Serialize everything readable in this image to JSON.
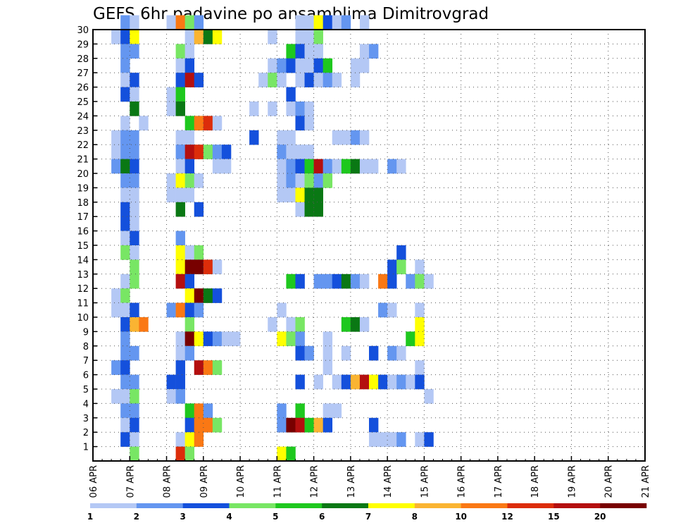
{
  "chart_data": {
    "type": "heatmap",
    "title": "GEFS 6hr padavine po ansamblima Dimitrovgrad",
    "xlabel": "",
    "ylabel": "",
    "x_ticks": [
      "06 APR",
      "07 APR",
      "08 APR",
      "09 APR",
      "10 APR",
      "11 APR",
      "12 APR",
      "13 APR",
      "14 APR",
      "15 APR",
      "16 APR",
      "17 APR",
      "18 APR",
      "19 APR",
      "20 APR",
      "21 APR"
    ],
    "y_ticks": [
      "1",
      "2",
      "3",
      "4",
      "5",
      "6",
      "7",
      "8",
      "9",
      "10",
      "11",
      "12",
      "13",
      "14",
      "15",
      "16",
      "17",
      "18",
      "19",
      "20",
      "21",
      "22",
      "23",
      "24",
      "25",
      "26",
      "27",
      "28",
      "29",
      "30"
    ],
    "xlim": [
      0,
      60
    ],
    "ylim": [
      0,
      30
    ],
    "steps_per_day": 4,
    "legend": {
      "labels": [
        "1",
        "2",
        "3",
        "4",
        "5",
        "6",
        "7",
        "8",
        "10",
        "12",
        "15",
        "20"
      ],
      "colors": [
        "#b4c8f5",
        "#6496f0",
        "#1450dc",
        "#78e664",
        "#1ec81e",
        "#0a7814",
        "#ffff00",
        "#fab432",
        "#fa7814",
        "#dc2d0a",
        "#b40f0f",
        "#780000"
      ]
    },
    "cells": [
      [
        30,
        3,
        2
      ],
      [
        30,
        4,
        1
      ],
      [
        30,
        8,
        1
      ],
      [
        30,
        9,
        10
      ],
      [
        30,
        10,
        4
      ],
      [
        30,
        11,
        2
      ],
      [
        30,
        22,
        1
      ],
      [
        30,
        23,
        1
      ],
      [
        30,
        24,
        7
      ],
      [
        30,
        25,
        3
      ],
      [
        30,
        26,
        1
      ],
      [
        30,
        27,
        2
      ],
      [
        30,
        29,
        1
      ],
      [
        29,
        2,
        1
      ],
      [
        29,
        3,
        3
      ],
      [
        29,
        4,
        7
      ],
      [
        29,
        10,
        1
      ],
      [
        29,
        11,
        8
      ],
      [
        29,
        12,
        6
      ],
      [
        29,
        13,
        7
      ],
      [
        29,
        19,
        1
      ],
      [
        29,
        22,
        1
      ],
      [
        29,
        23,
        1
      ],
      [
        29,
        24,
        4
      ],
      [
        28,
        3,
        2
      ],
      [
        28,
        4,
        2
      ],
      [
        28,
        9,
        4
      ],
      [
        28,
        10,
        1
      ],
      [
        28,
        21,
        5
      ],
      [
        28,
        22,
        3
      ],
      [
        28,
        23,
        1
      ],
      [
        28,
        24,
        1
      ],
      [
        28,
        29,
        1
      ],
      [
        28,
        30,
        2
      ],
      [
        27,
        3,
        2
      ],
      [
        27,
        9,
        1
      ],
      [
        27,
        10,
        3
      ],
      [
        27,
        19,
        1
      ],
      [
        27,
        20,
        2
      ],
      [
        27,
        21,
        3
      ],
      [
        27,
        22,
        1
      ],
      [
        27,
        23,
        1
      ],
      [
        27,
        24,
        3
      ],
      [
        27,
        25,
        5
      ],
      [
        27,
        28,
        1
      ],
      [
        27,
        29,
        1
      ],
      [
        26,
        3,
        1
      ],
      [
        26,
        4,
        3
      ],
      [
        26,
        9,
        3
      ],
      [
        26,
        10,
        15
      ],
      [
        26,
        11,
        3
      ],
      [
        26,
        18,
        1
      ],
      [
        26,
        19,
        4
      ],
      [
        26,
        20,
        1
      ],
      [
        26,
        22,
        1
      ],
      [
        26,
        23,
        3
      ],
      [
        26,
        24,
        1
      ],
      [
        26,
        25,
        2
      ],
      [
        26,
        26,
        1
      ],
      [
        26,
        28,
        1
      ],
      [
        25,
        3,
        3
      ],
      [
        25,
        4,
        1
      ],
      [
        25,
        8,
        1
      ],
      [
        25,
        9,
        5
      ],
      [
        25,
        21,
        3
      ],
      [
        24,
        4,
        6
      ],
      [
        24,
        8,
        1
      ],
      [
        24,
        9,
        6
      ],
      [
        24,
        17,
        1
      ],
      [
        24,
        19,
        1
      ],
      [
        24,
        21,
        1
      ],
      [
        24,
        22,
        2
      ],
      [
        24,
        23,
        1
      ],
      [
        23,
        3,
        1
      ],
      [
        23,
        5,
        1
      ],
      [
        23,
        10,
        5
      ],
      [
        23,
        11,
        10
      ],
      [
        23,
        12,
        12
      ],
      [
        23,
        13,
        1
      ],
      [
        23,
        22,
        3
      ],
      [
        23,
        23,
        1
      ],
      [
        22,
        2,
        1
      ],
      [
        22,
        3,
        2
      ],
      [
        22,
        4,
        2
      ],
      [
        22,
        9,
        1
      ],
      [
        22,
        10,
        1
      ],
      [
        22,
        17,
        3
      ],
      [
        22,
        20,
        1
      ],
      [
        22,
        21,
        1
      ],
      [
        22,
        26,
        1
      ],
      [
        22,
        27,
        1
      ],
      [
        22,
        28,
        2
      ],
      [
        22,
        29,
        1
      ],
      [
        21,
        2,
        1
      ],
      [
        21,
        3,
        2
      ],
      [
        21,
        4,
        2
      ],
      [
        21,
        9,
        2
      ],
      [
        21,
        10,
        15
      ],
      [
        21,
        11,
        12
      ],
      [
        21,
        12,
        4
      ],
      [
        21,
        13,
        2
      ],
      [
        21,
        14,
        3
      ],
      [
        21,
        20,
        2
      ],
      [
        21,
        21,
        1
      ],
      [
        21,
        22,
        1
      ],
      [
        21,
        23,
        1
      ],
      [
        20,
        2,
        2
      ],
      [
        20,
        3,
        6
      ],
      [
        20,
        4,
        3
      ],
      [
        20,
        9,
        1
      ],
      [
        20,
        10,
        3
      ],
      [
        20,
        13,
        1
      ],
      [
        20,
        14,
        1
      ],
      [
        20,
        20,
        1
      ],
      [
        20,
        21,
        2
      ],
      [
        20,
        22,
        3
      ],
      [
        20,
        23,
        5
      ],
      [
        20,
        24,
        15
      ],
      [
        20,
        25,
        2
      ],
      [
        20,
        26,
        1
      ],
      [
        20,
        27,
        5
      ],
      [
        20,
        28,
        6
      ],
      [
        20,
        29,
        1
      ],
      [
        20,
        30,
        1
      ],
      [
        20,
        32,
        2
      ],
      [
        20,
        33,
        1
      ],
      [
        19,
        3,
        2
      ],
      [
        19,
        4,
        2
      ],
      [
        19,
        8,
        1
      ],
      [
        19,
        9,
        7
      ],
      [
        19,
        10,
        4
      ],
      [
        19,
        11,
        1
      ],
      [
        19,
        20,
        1
      ],
      [
        19,
        21,
        2
      ],
      [
        19,
        22,
        1
      ],
      [
        19,
        23,
        4
      ],
      [
        19,
        24,
        2
      ],
      [
        19,
        25,
        4
      ],
      [
        18,
        3,
        1
      ],
      [
        18,
        4,
        1
      ],
      [
        18,
        8,
        1
      ],
      [
        18,
        9,
        1
      ],
      [
        18,
        10,
        1
      ],
      [
        18,
        20,
        1
      ],
      [
        18,
        21,
        1
      ],
      [
        18,
        22,
        7
      ],
      [
        18,
        23,
        6
      ],
      [
        18,
        24,
        6
      ],
      [
        17,
        3,
        3
      ],
      [
        17,
        4,
        1
      ],
      [
        17,
        9,
        6
      ],
      [
        17,
        11,
        3
      ],
      [
        17,
        22,
        1
      ],
      [
        17,
        23,
        6
      ],
      [
        17,
        24,
        6
      ],
      [
        16,
        3,
        3
      ],
      [
        16,
        4,
        1
      ],
      [
        15,
        3,
        1
      ],
      [
        15,
        4,
        3
      ],
      [
        15,
        9,
        2
      ],
      [
        14,
        3,
        4
      ],
      [
        14,
        4,
        1
      ],
      [
        14,
        9,
        7
      ],
      [
        14,
        10,
        1
      ],
      [
        14,
        11,
        4
      ],
      [
        14,
        33,
        3
      ],
      [
        13,
        4,
        4
      ],
      [
        13,
        9,
        7
      ],
      [
        13,
        10,
        20
      ],
      [
        13,
        11,
        20
      ],
      [
        13,
        12,
        12
      ],
      [
        13,
        13,
        1
      ],
      [
        13,
        32,
        3
      ],
      [
        13,
        33,
        4
      ],
      [
        13,
        35,
        1
      ],
      [
        12,
        3,
        1
      ],
      [
        12,
        4,
        4
      ],
      [
        12,
        9,
        15
      ],
      [
        12,
        10,
        3
      ],
      [
        12,
        21,
        5
      ],
      [
        12,
        22,
        3
      ],
      [
        12,
        24,
        2
      ],
      [
        12,
        25,
        2
      ],
      [
        12,
        26,
        3
      ],
      [
        12,
        27,
        6
      ],
      [
        12,
        28,
        2
      ],
      [
        12,
        29,
        1
      ],
      [
        12,
        31,
        10
      ],
      [
        12,
        32,
        3
      ],
      [
        12,
        34,
        2
      ],
      [
        12,
        35,
        4
      ],
      [
        12,
        36,
        1
      ],
      [
        11,
        2,
        1
      ],
      [
        11,
        3,
        4
      ],
      [
        11,
        10,
        7
      ],
      [
        11,
        11,
        20
      ],
      [
        11,
        12,
        6
      ],
      [
        11,
        13,
        3
      ],
      [
        10,
        2,
        1
      ],
      [
        10,
        3,
        1
      ],
      [
        10,
        4,
        3
      ],
      [
        10,
        8,
        2
      ],
      [
        10,
        9,
        10
      ],
      [
        10,
        10,
        3
      ],
      [
        10,
        11,
        2
      ],
      [
        10,
        20,
        1
      ],
      [
        10,
        31,
        2
      ],
      [
        10,
        32,
        1
      ],
      [
        10,
        35,
        1
      ],
      [
        9,
        3,
        3
      ],
      [
        9,
        4,
        8
      ],
      [
        9,
        5,
        10
      ],
      [
        9,
        10,
        4
      ],
      [
        9,
        19,
        1
      ],
      [
        9,
        21,
        1
      ],
      [
        9,
        22,
        4
      ],
      [
        9,
        27,
        5
      ],
      [
        9,
        28,
        6
      ],
      [
        9,
        29,
        1
      ],
      [
        9,
        35,
        7
      ],
      [
        8,
        3,
        2
      ],
      [
        8,
        9,
        1
      ],
      [
        8,
        10,
        20
      ],
      [
        8,
        11,
        7
      ],
      [
        8,
        12,
        3
      ],
      [
        8,
        13,
        2
      ],
      [
        8,
        14,
        1
      ],
      [
        8,
        15,
        1
      ],
      [
        8,
        20,
        7
      ],
      [
        8,
        21,
        4
      ],
      [
        8,
        22,
        2
      ],
      [
        8,
        25,
        1
      ],
      [
        8,
        34,
        5
      ],
      [
        8,
        35,
        7
      ],
      [
        7,
        3,
        2
      ],
      [
        7,
        4,
        2
      ],
      [
        7,
        9,
        1
      ],
      [
        7,
        10,
        2
      ],
      [
        7,
        22,
        3
      ],
      [
        7,
        23,
        2
      ],
      [
        7,
        25,
        1
      ],
      [
        7,
        27,
        1
      ],
      [
        7,
        30,
        3
      ],
      [
        7,
        32,
        2
      ],
      [
        7,
        33,
        1
      ],
      [
        6,
        2,
        2
      ],
      [
        6,
        3,
        3
      ],
      [
        6,
        9,
        3
      ],
      [
        6,
        11,
        15
      ],
      [
        6,
        12,
        10
      ],
      [
        6,
        13,
        4
      ],
      [
        6,
        25,
        1
      ],
      [
        6,
        35,
        1
      ],
      [
        5,
        3,
        2
      ],
      [
        5,
        4,
        2
      ],
      [
        5,
        8,
        3
      ],
      [
        5,
        9,
        3
      ],
      [
        5,
        22,
        3
      ],
      [
        5,
        24,
        1
      ],
      [
        5,
        26,
        1
      ],
      [
        5,
        27,
        3
      ],
      [
        5,
        28,
        8
      ],
      [
        5,
        29,
        15
      ],
      [
        5,
        30,
        7
      ],
      [
        5,
        31,
        3
      ],
      [
        5,
        32,
        1
      ],
      [
        5,
        33,
        2
      ],
      [
        5,
        34,
        1
      ],
      [
        5,
        35,
        3
      ],
      [
        4,
        2,
        1
      ],
      [
        4,
        3,
        1
      ],
      [
        4,
        4,
        4
      ],
      [
        4,
        8,
        1
      ],
      [
        4,
        9,
        2
      ],
      [
        4,
        36,
        1
      ],
      [
        3,
        3,
        2
      ],
      [
        3,
        4,
        2
      ],
      [
        3,
        10,
        5
      ],
      [
        3,
        11,
        10
      ],
      [
        3,
        12,
        2
      ],
      [
        3,
        20,
        2
      ],
      [
        3,
        22,
        5
      ],
      [
        3,
        25,
        1
      ],
      [
        3,
        26,
        1
      ],
      [
        2,
        3,
        1
      ],
      [
        2,
        4,
        3
      ],
      [
        2,
        10,
        3
      ],
      [
        2,
        11,
        10
      ],
      [
        2,
        12,
        10
      ],
      [
        2,
        13,
        4
      ],
      [
        2,
        20,
        2
      ],
      [
        2,
        21,
        20
      ],
      [
        2,
        22,
        15
      ],
      [
        2,
        23,
        5
      ],
      [
        2,
        24,
        8
      ],
      [
        2,
        25,
        3
      ],
      [
        2,
        30,
        3
      ],
      [
        1,
        3,
        3
      ],
      [
        1,
        4,
        1
      ],
      [
        1,
        9,
        1
      ],
      [
        1,
        10,
        7
      ],
      [
        1,
        11,
        10
      ],
      [
        1,
        30,
        1
      ],
      [
        1,
        31,
        1
      ],
      [
        1,
        32,
        1
      ],
      [
        1,
        33,
        2
      ],
      [
        1,
        35,
        1
      ],
      [
        1,
        36,
        3
      ],
      [
        0,
        4,
        4
      ],
      [
        0,
        9,
        12
      ],
      [
        0,
        10,
        4
      ],
      [
        0,
        20,
        7
      ],
      [
        0,
        21,
        5
      ]
    ]
  }
}
